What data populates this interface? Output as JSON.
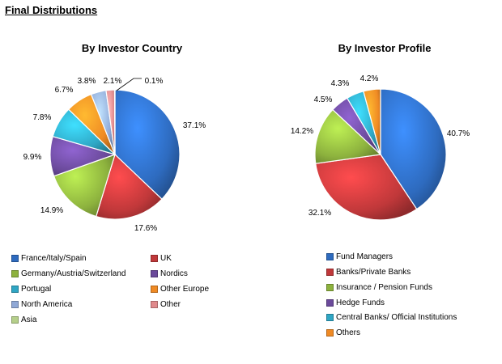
{
  "page": {
    "title": "Final Distributions"
  },
  "chart_data": [
    {
      "type": "pie",
      "title": "By Investor Country",
      "categories": [
        "France/Italy/Spain",
        "UK",
        "Germany/Austria/Switzerland",
        "Nordics",
        "Portugal",
        "Other Europe",
        "North America",
        "Other",
        "Asia"
      ],
      "values": [
        37.1,
        17.6,
        14.9,
        9.9,
        7.8,
        6.7,
        3.8,
        2.1,
        0.1
      ],
      "value_labels": [
        "37.1%",
        "17.6%",
        "14.9%",
        "9.9%",
        "7.8%",
        "6.7%",
        "3.8%",
        "2.1%",
        "0.1%"
      ],
      "colors": [
        "#2e6bbf",
        "#c0383a",
        "#8db23e",
        "#6b4a9b",
        "#2fa6c4",
        "#ef8a24",
        "#8fa8d6",
        "#e08a8c",
        "#b5cf8a"
      ],
      "legend_position": "bottom"
    },
    {
      "type": "pie",
      "title": "By Investor Profile",
      "categories": [
        "Fund Managers",
        "Banks/Private Banks",
        "Insurance / Pension Funds",
        "Hedge Funds",
        "Central Banks/ Official Institutions",
        "Others"
      ],
      "values": [
        40.7,
        32.1,
        14.2,
        4.5,
        4.3,
        4.2
      ],
      "value_labels": [
        "40.7%",
        "32.1%",
        "14.2%",
        "4.5%",
        "4.3%",
        "4.2%"
      ],
      "colors": [
        "#2e6bbf",
        "#c0383a",
        "#8db23e",
        "#6b4a9b",
        "#2fa6c4",
        "#ef8a24"
      ],
      "legend_position": "bottom"
    }
  ]
}
